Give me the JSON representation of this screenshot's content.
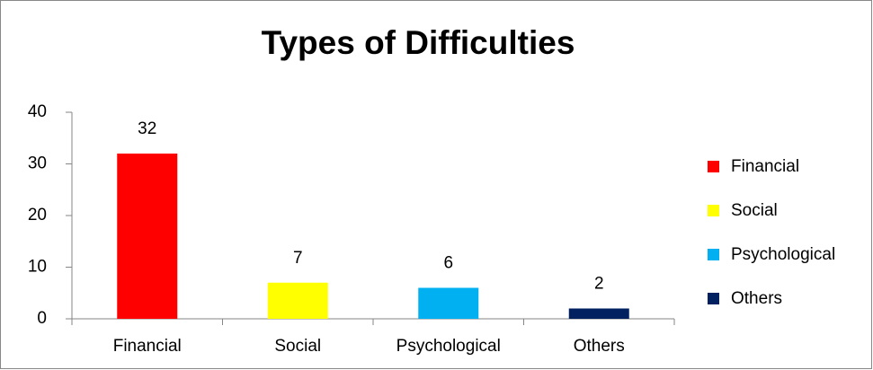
{
  "chart_data": {
    "type": "bar",
    "title": "Types of Difficulties",
    "categories": [
      "Financial",
      "Social",
      "Psychological",
      "Others"
    ],
    "values": [
      32,
      7,
      6,
      2
    ],
    "colors": [
      "#ff0000",
      "#ffff00",
      "#00b0f0",
      "#002060"
    ],
    "ylim": [
      0,
      40
    ],
    "yticks": [
      0,
      10,
      20,
      30,
      40
    ],
    "grid": false,
    "legend": "right"
  }
}
